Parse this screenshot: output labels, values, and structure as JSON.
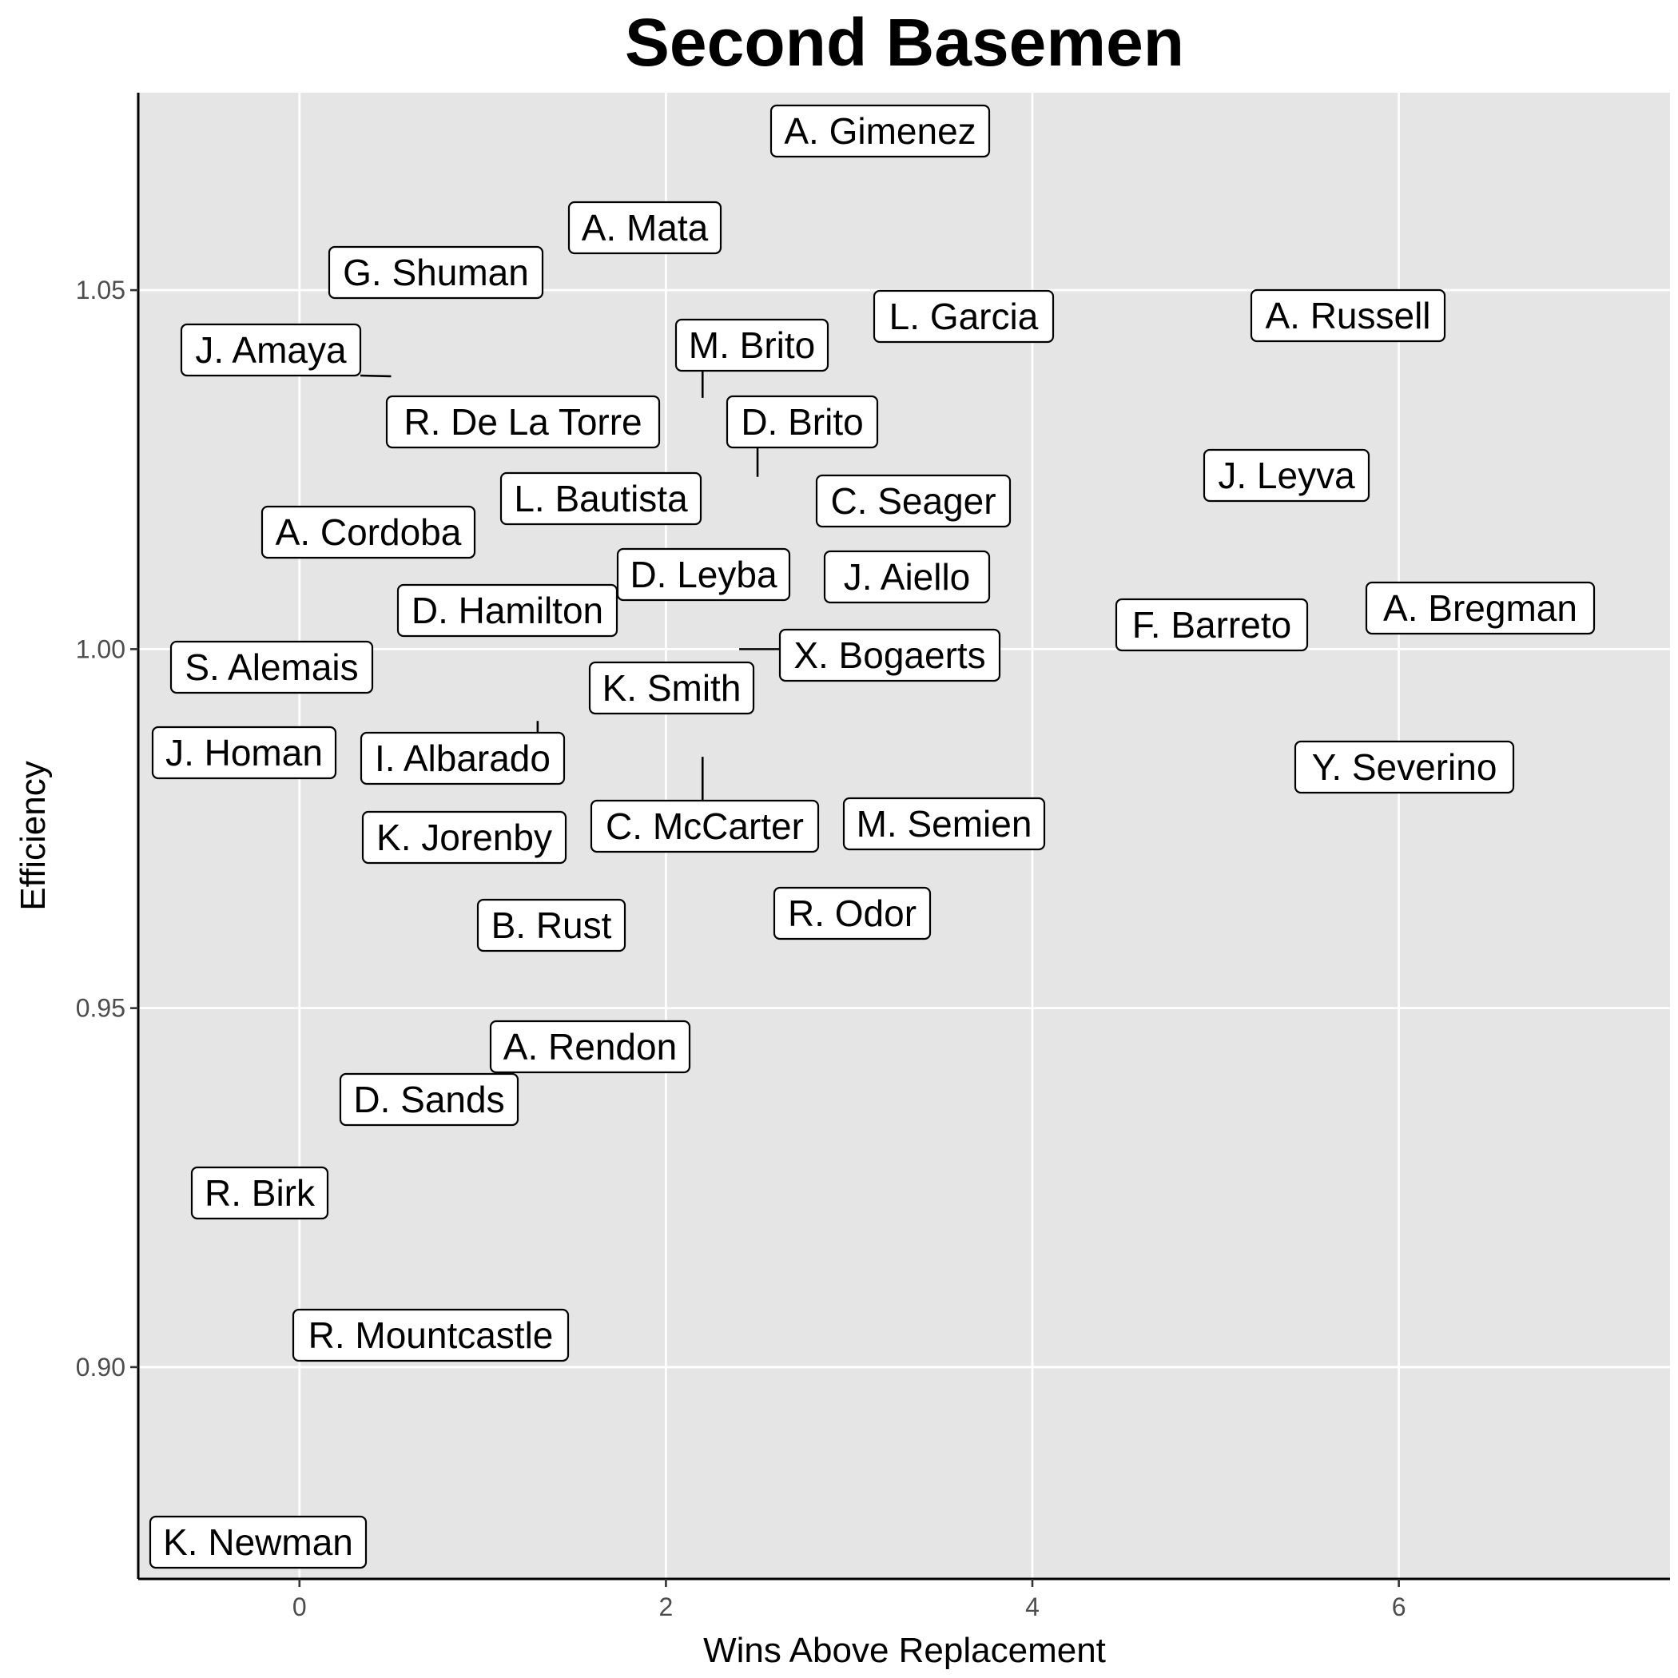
{
  "chart_data": {
    "type": "scatter",
    "title": "Second Basemen",
    "xlabel": "Wins Above Replacement",
    "ylabel": "Efficiency",
    "xlim": [
      -0.88,
      7.48
    ],
    "ylim": [
      0.8705,
      1.0775
    ],
    "x_ticks": [
      0,
      2,
      4,
      6
    ],
    "x_tick_labels": [
      "0",
      "2",
      "4",
      "6"
    ],
    "y_ticks": [
      0.9,
      0.95,
      1.0,
      1.05
    ],
    "y_tick_labels": [
      "0.90",
      "0.95",
      "1.00",
      "1.05"
    ],
    "grid": true,
    "legend": "none",
    "points": [
      {
        "label": "A. Gimenez",
        "x": 3.17,
        "y": 1.071
      },
      {
        "label": "A. Mata",
        "x": 1.88,
        "y": 1.058
      },
      {
        "label": "G. Shuman",
        "x": 0.75,
        "y": 1.052
      },
      {
        "label": "L. Garcia",
        "x": 3.6,
        "y": 1.045
      },
      {
        "label": "A. Russell",
        "x": 5.75,
        "y": 1.045
      },
      {
        "label": "J. Amaya",
        "x": 0.5,
        "y": 1.038
      },
      {
        "label": "M. Brito",
        "x": 2.2,
        "y": 1.035
      },
      {
        "label": "R. De La Torre",
        "x": 1.2,
        "y": 1.03
      },
      {
        "label": "D. Brito",
        "x": 2.5,
        "y": 1.024
      },
      {
        "label": "J. Leyva",
        "x": 5.4,
        "y": 1.023
      },
      {
        "label": "L. Bautista",
        "x": 1.64,
        "y": 1.02
      },
      {
        "label": "C. Seager",
        "x": 3.35,
        "y": 1.019
      },
      {
        "label": "A. Cordoba",
        "x": 0.38,
        "y": 1.015
      },
      {
        "label": "D. Leyba",
        "x": 2.03,
        "y": 1.009
      },
      {
        "label": "J. Aiello",
        "x": 3.3,
        "y": 1.009
      },
      {
        "label": "A. Bregman",
        "x": 7.1,
        "y": 1.01
      },
      {
        "label": "D. Hamilton",
        "x": 1.25,
        "y": 1.004
      },
      {
        "label": "F. Barreto",
        "x": 4.95,
        "y": 1.002
      },
      {
        "label": "X. Bogaerts",
        "x": 2.4,
        "y": 1.0
      },
      {
        "label": "S. Alemais",
        "x": -0.15,
        "y": 0.996
      },
      {
        "label": "K. Smith",
        "x": 2.03,
        "y": 0.994
      },
      {
        "label": "J. Homan",
        "x": -0.3,
        "y": 0.984
      },
      {
        "label": "I. Albarado",
        "x": 1.3,
        "y": 0.99
      },
      {
        "label": "Y. Severino",
        "x": 6.05,
        "y": 0.983
      },
      {
        "label": "C. McCarter",
        "x": 2.2,
        "y": 0.985
      },
      {
        "label": "M. Semien",
        "x": 3.5,
        "y": 0.975
      },
      {
        "label": "K. Jorenby",
        "x": 0.9,
        "y": 0.973
      },
      {
        "label": "R. Odor",
        "x": 3.0,
        "y": 0.962
      },
      {
        "label": "B. Rust",
        "x": 1.37,
        "y": 0.96
      },
      {
        "label": "A. Rendon",
        "x": 1.6,
        "y": 0.943
      },
      {
        "label": "D. Sands",
        "x": 0.7,
        "y": 0.936
      },
      {
        "label": "R. Birk",
        "x": -0.22,
        "y": 0.923
      },
      {
        "label": "R. Mountcastle",
        "x": 0.72,
        "y": 0.904
      },
      {
        "label": "K. Newman",
        "x": -0.23,
        "y": 0.875
      }
    ]
  }
}
